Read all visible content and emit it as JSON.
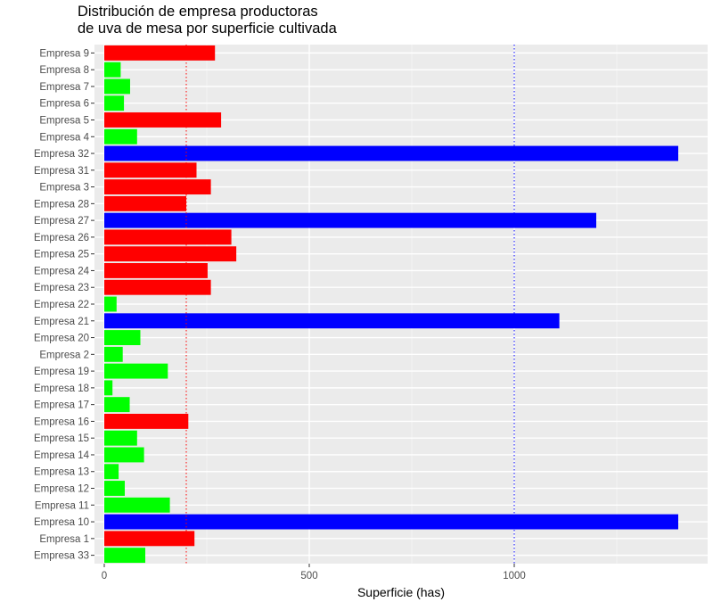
{
  "chart_data": {
    "type": "bar",
    "orientation": "horizontal",
    "title_lines": [
      "Distribución de empresa productoras",
      "de uva de mesa por superficie cultivada"
    ],
    "xlabel": "Superficie (has)",
    "ylabel": "",
    "xlim": [
      -25,
      1460
    ],
    "xticks": [
      0,
      500,
      1000
    ],
    "grid": true,
    "background": "#EBEBEB",
    "reference_lines": [
      {
        "x": 200,
        "color": "#FF0000",
        "style": "dotted"
      },
      {
        "x": 1000,
        "color": "#0000FF",
        "style": "dotted"
      }
    ],
    "categories": [
      "Empresa 33",
      "Empresa 1",
      "Empresa 10",
      "Empresa 11",
      "Empresa 12",
      "Empresa 13",
      "Empresa 14",
      "Empresa 15",
      "Empresa 16",
      "Empresa 17",
      "Empresa 18",
      "Empresa 19",
      "Empresa 2",
      "Empresa 20",
      "Empresa 21",
      "Empresa 22",
      "Empresa 23",
      "Empresa 24",
      "Empresa 25",
      "Empresa 26",
      "Empresa 27",
      "Empresa 28",
      "Empresa 3",
      "Empresa 31",
      "Empresa 32",
      "Empresa 4",
      "Empresa 5",
      "Empresa 6",
      "Empresa 7",
      "Empresa 8",
      "Empresa 9"
    ],
    "values": [
      100,
      220,
      1400,
      160,
      50,
      35,
      97,
      80,
      205,
      62,
      20,
      155,
      45,
      88,
      1110,
      30,
      260,
      252,
      322,
      310,
      1200,
      200,
      260,
      225,
      1400,
      80,
      285,
      48,
      63,
      40,
      270
    ],
    "colors": [
      "#00FF00",
      "#FF0000",
      "#0000FF",
      "#00FF00",
      "#00FF00",
      "#00FF00",
      "#00FF00",
      "#00FF00",
      "#FF0000",
      "#00FF00",
      "#00FF00",
      "#00FF00",
      "#00FF00",
      "#00FF00",
      "#0000FF",
      "#00FF00",
      "#FF0000",
      "#FF0000",
      "#FF0000",
      "#FF0000",
      "#0000FF",
      "#FF0000",
      "#FF0000",
      "#FF0000",
      "#0000FF",
      "#00FF00",
      "#FF0000",
      "#00FF00",
      "#00FF00",
      "#00FF00",
      "#FF0000"
    ]
  }
}
